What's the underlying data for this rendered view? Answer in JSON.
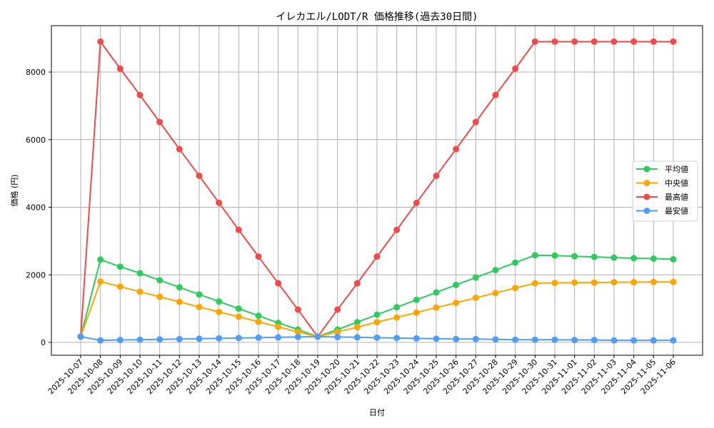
{
  "chart_data": {
    "type": "line",
    "title": "イレカエル/LODT/R 価格推移(過去30日間)",
    "xlabel": "日付",
    "ylabel": "価格 (円)",
    "ylim": [
      -400,
      9400
    ],
    "yticks": [
      0,
      2000,
      4000,
      6000,
      8000
    ],
    "grid": true,
    "legend_position": "center right",
    "x": [
      "2025-10-07",
      "2025-10-08",
      "2025-10-09",
      "2025-10-10",
      "2025-10-11",
      "2025-10-12",
      "2025-10-13",
      "2025-10-14",
      "2025-10-15",
      "2025-10-16",
      "2025-10-17",
      "2025-10-18",
      "2025-10-19",
      "2025-10-20",
      "2025-10-21",
      "2025-10-22",
      "2025-10-23",
      "2025-10-24",
      "2025-10-25",
      "2025-10-26",
      "2025-10-27",
      "2025-10-28",
      "2025-10-29",
      "2025-10-30",
      "2025-10-31",
      "2025-11-01",
      "2025-11-02",
      "2025-11-03",
      "2025-11-04",
      "2025-11-05",
      "2025-11-06"
    ],
    "series": [
      {
        "name": "平均値",
        "color": "#2ecc5f",
        "values": [
          170,
          2450,
          2240,
          2050,
          1840,
          1630,
          1420,
          1210,
          1000,
          790,
          580,
          380,
          170,
          380,
          600,
          820,
          1040,
          1260,
          1480,
          1700,
          1920,
          2140,
          2360,
          2580,
          2570,
          2550,
          2530,
          2510,
          2490,
          2480,
          2460
        ]
      },
      {
        "name": "中央値",
        "color": "#ffa500",
        "values": [
          170,
          1800,
          1650,
          1500,
          1350,
          1200,
          1050,
          900,
          760,
          610,
          460,
          310,
          170,
          310,
          450,
          600,
          740,
          880,
          1030,
          1170,
          1320,
          1460,
          1610,
          1750,
          1760,
          1770,
          1770,
          1780,
          1780,
          1790,
          1790
        ]
      },
      {
        "name": "最高値",
        "color": "#f24a4a",
        "values": [
          170,
          8900,
          8100,
          7320,
          6520,
          5720,
          4930,
          4130,
          3330,
          2540,
          1750,
          970,
          170,
          970,
          1750,
          2540,
          3330,
          4130,
          4930,
          5720,
          6520,
          7320,
          8100,
          8900,
          8900,
          8900,
          8900,
          8900,
          8900,
          8900,
          8900
        ]
      },
      {
        "name": "最安値",
        "color": "#4f9cf9",
        "values": [
          170,
          60,
          70,
          80,
          90,
          100,
          110,
          120,
          130,
          140,
          150,
          160,
          170,
          160,
          150,
          140,
          130,
          120,
          110,
          100,
          100,
          90,
          80,
          80,
          80,
          70,
          70,
          60,
          60,
          60,
          60
        ]
      }
    ]
  }
}
